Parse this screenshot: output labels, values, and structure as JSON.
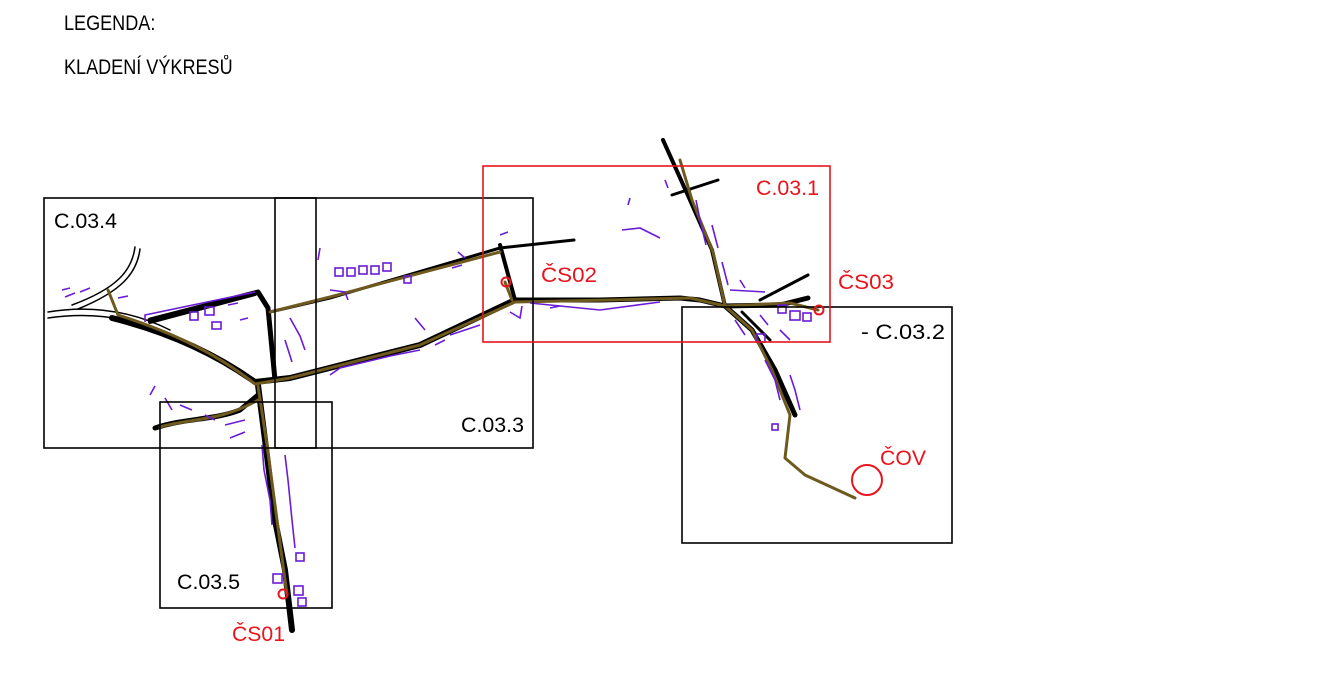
{
  "legend": {
    "title": "LEGENDA:",
    "subtitle": "KLADENÍ VÝKRESŮ"
  },
  "sheets": [
    {
      "id": "C.03.1",
      "label": "C.03.1",
      "color": "#e8141c"
    },
    {
      "id": "C.03.2",
      "label": "- C.03.2",
      "color": "#000000"
    },
    {
      "id": "C.03.3",
      "label": "C.03.3",
      "color": "#000000"
    },
    {
      "id": "C.03.4",
      "label": "C.03.4",
      "color": "#000000"
    },
    {
      "id": "C.03.5",
      "label": "C.03.5",
      "color": "#000000"
    }
  ],
  "stations": [
    {
      "id": "CS01",
      "label": "ČS01"
    },
    {
      "id": "CS02",
      "label": "ČS02"
    },
    {
      "id": "CS03",
      "label": "ČS03"
    },
    {
      "id": "COV",
      "label": "ČOV"
    }
  ],
  "colors": {
    "road": "#000000",
    "pipe": "#6e5a1e",
    "buildings": "#6a1bd6",
    "marker": "#e8141c"
  }
}
